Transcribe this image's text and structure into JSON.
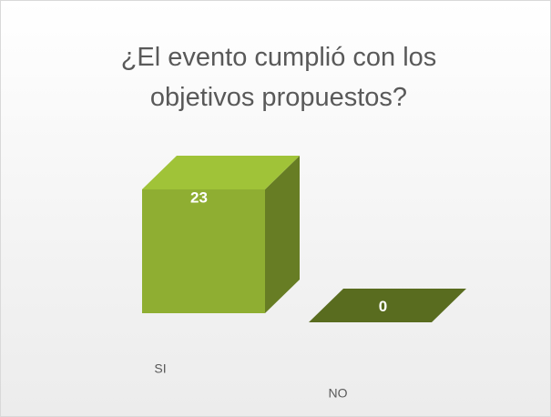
{
  "chart_data": {
    "type": "bar3d",
    "title": "¿El evento cumplió con los objetivos propuestos?",
    "categories": [
      "SI",
      "NO"
    ],
    "values": [
      23,
      0
    ],
    "color": "#8fae32"
  }
}
